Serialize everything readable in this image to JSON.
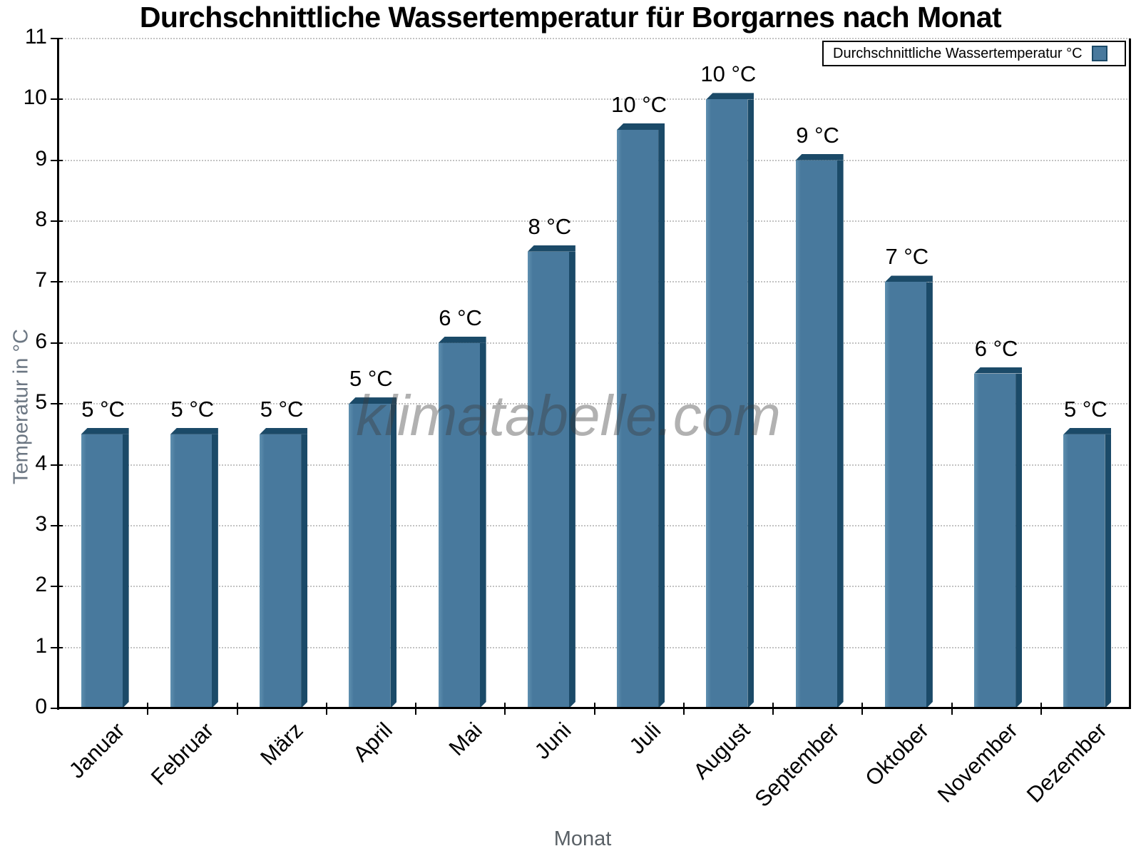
{
  "title": "Durchschnittliche Wassertemperatur für Borgarnes nach Monat",
  "watermark": "klimatabelle.com",
  "legend": {
    "label": "Durchschnittliche Wassertemperatur °C",
    "swatch": "blue-square-swatch"
  },
  "axes": {
    "y_title": "Temperatur in °C",
    "x_title": "Monat"
  },
  "colors": {
    "bar_face": "#48799d",
    "bar_face_highlight": "#5f90b0",
    "bar_edge": "#1b4a68",
    "grid": "#c3c3c3",
    "axis": "#000000",
    "y_title_gray": "#6b7682",
    "x_title_gray": "#596066",
    "watermark_gray": "#b1b1b1"
  },
  "chart_data": {
    "type": "bar",
    "title": "Durchschnittliche Wassertemperatur für Borgarnes nach Monat",
    "xlabel": "Monat",
    "ylabel": "Temperatur in °C",
    "categories": [
      "Januar",
      "Februar",
      "März",
      "April",
      "Mai",
      "Juni",
      "Juli",
      "August",
      "September",
      "Oktober",
      "November",
      "Dezember"
    ],
    "values": [
      4.5,
      4.5,
      4.5,
      5.0,
      6.0,
      7.5,
      9.5,
      10.0,
      9.0,
      7.0,
      5.5,
      4.5
    ],
    "bar_labels": [
      "5 °C",
      "5 °C",
      "5 °C",
      "5 °C",
      "6 °C",
      "8 °C",
      "10 °C",
      "10 °C",
      "9 °C",
      "7 °C",
      "6 °C",
      "5 °C"
    ],
    "series_name": "Durchschnittliche Wassertemperatur °C",
    "ylim": [
      0,
      11
    ],
    "yticks": [
      0,
      1,
      2,
      3,
      4,
      5,
      6,
      7,
      8,
      9,
      10,
      11
    ],
    "grid": "horizontal-dotted",
    "legend_position": "top-right",
    "bar_style": "3d-beveled"
  }
}
